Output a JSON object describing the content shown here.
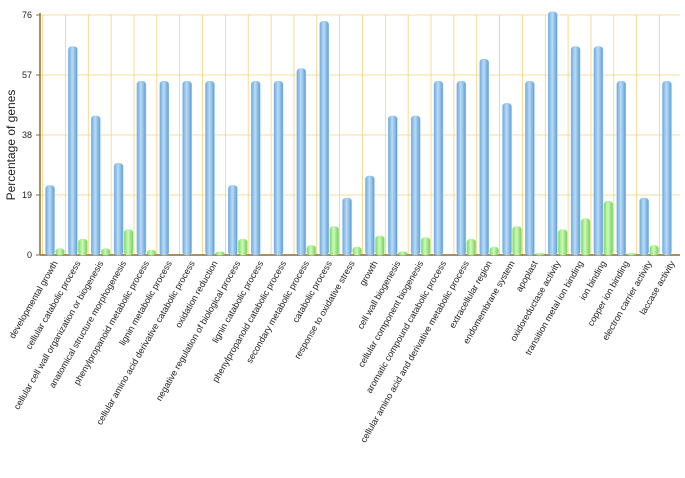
{
  "chart_data": {
    "type": "bar",
    "ylabel": "Percentage of genes",
    "ylim": [
      0,
      76
    ],
    "yticks": [
      0,
      19,
      38,
      57,
      76
    ],
    "grid": true,
    "categories": [
      "developmental growth",
      "cellular catabolic process",
      "cellular cell wall organization or biogenesis",
      "anatomical structure morphogenesis",
      "phenylpropanoid metabolic process",
      "lignin metabolic process",
      "cellular amino acid derivative catabolic process",
      "oxidation reduction",
      "negative regulation of biological process",
      "lignin catabolic process",
      "phenylpropanoid catabolic process",
      "secondary metabolic process",
      "catabolic process",
      "response to oxidative stress",
      "growth",
      "cell wall biogenesis",
      "cellular component biogenesis",
      "aromatic compound catabolic process",
      "cellular amino acid and derivative metabolic process",
      "extracellular region",
      "endomembrane system",
      "apoplast",
      "oxidoreductase activity",
      "transition metal ion binding",
      "ion binding",
      "copper ion binding",
      "electron carrier activity",
      "laccase activity"
    ],
    "series": [
      {
        "color": "#8fc4ee",
        "values": [
          22,
          66,
          44,
          29,
          55,
          55,
          55,
          55,
          22,
          55,
          55,
          59,
          74,
          18,
          25,
          44,
          44,
          55,
          55,
          62,
          48,
          55,
          77,
          66,
          66,
          55,
          18,
          55
        ]
      },
      {
        "color": "#a6f08a",
        "values": [
          2,
          5,
          2,
          8,
          1.5,
          0,
          0,
          1,
          5,
          0,
          0,
          3,
          9,
          2.5,
          6,
          1,
          5.5,
          0,
          5,
          2.5,
          9,
          0.5,
          8,
          11.5,
          17,
          0.5,
          3,
          0
        ]
      }
    ]
  }
}
